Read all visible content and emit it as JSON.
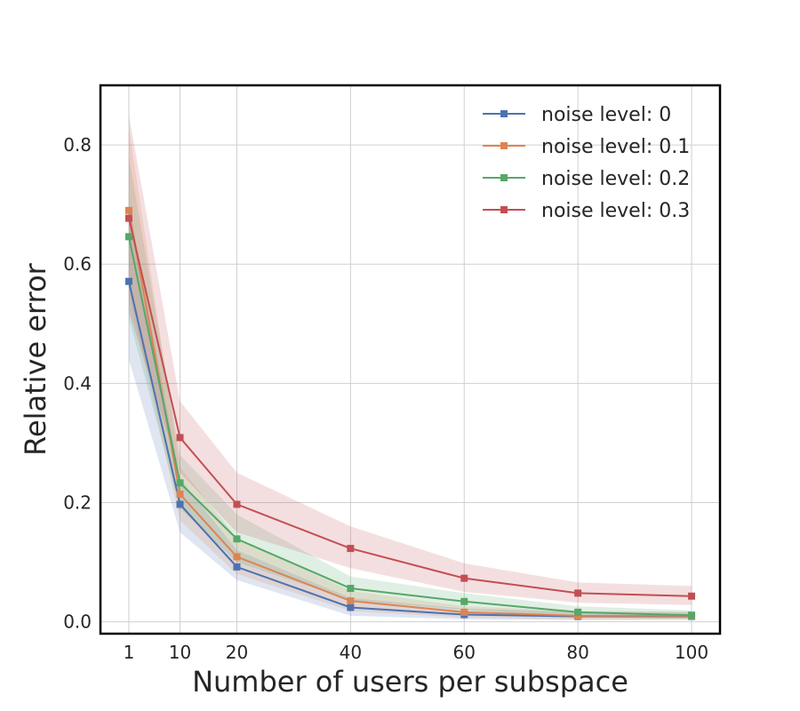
{
  "chart_data": {
    "type": "line",
    "title": "",
    "xlabel": "Number of users per subspace",
    "ylabel": "Relative error",
    "x": [
      1,
      10,
      20,
      40,
      60,
      80,
      100
    ],
    "xticks": [
      1,
      10,
      20,
      40,
      60,
      80,
      100
    ],
    "xtick_labels": [
      "1",
      "10",
      "20",
      "40",
      "60",
      "80",
      "100"
    ],
    "yticks": [
      0.0,
      0.2,
      0.4,
      0.6,
      0.8
    ],
    "ytick_labels": [
      "0.0",
      "0.2",
      "0.4",
      "0.6",
      "0.8"
    ],
    "xlim": [
      -4,
      105
    ],
    "ylim": [
      -0.02,
      0.9
    ],
    "grid": true,
    "legend_position": "top-right",
    "series": [
      {
        "name": "noise level: 0",
        "color": "#4c72b0",
        "values": [
          0.571,
          0.197,
          0.092,
          0.024,
          0.012,
          0.009,
          0.009
        ],
        "band_lower": [
          0.44,
          0.15,
          0.07,
          0.01,
          0.004,
          0.003,
          0.003
        ],
        "band_upper": [
          0.7,
          0.24,
          0.12,
          0.04,
          0.022,
          0.017,
          0.016
        ]
      },
      {
        "name": "noise level: 0.1",
        "color": "#dd8452",
        "values": [
          0.69,
          0.214,
          0.109,
          0.035,
          0.016,
          0.01,
          0.01
        ],
        "band_lower": [
          0.55,
          0.17,
          0.08,
          0.018,
          0.007,
          0.004,
          0.004
        ],
        "band_upper": [
          0.83,
          0.26,
          0.14,
          0.052,
          0.026,
          0.018,
          0.017
        ]
      },
      {
        "name": "noise level: 0.2",
        "color": "#55a868",
        "values": [
          0.646,
          0.233,
          0.139,
          0.056,
          0.034,
          0.016,
          0.011
        ],
        "band_lower": [
          0.51,
          0.19,
          0.1,
          0.036,
          0.02,
          0.008,
          0.005
        ],
        "band_upper": [
          0.78,
          0.28,
          0.18,
          0.076,
          0.048,
          0.026,
          0.019
        ]
      },
      {
        "name": "noise level: 0.3",
        "color": "#c44e52",
        "values": [
          0.677,
          0.309,
          0.197,
          0.123,
          0.073,
          0.048,
          0.043
        ],
        "band_lower": [
          0.52,
          0.25,
          0.15,
          0.09,
          0.05,
          0.032,
          0.028
        ],
        "band_upper": [
          0.85,
          0.37,
          0.25,
          0.16,
          0.098,
          0.066,
          0.06
        ]
      }
    ]
  }
}
